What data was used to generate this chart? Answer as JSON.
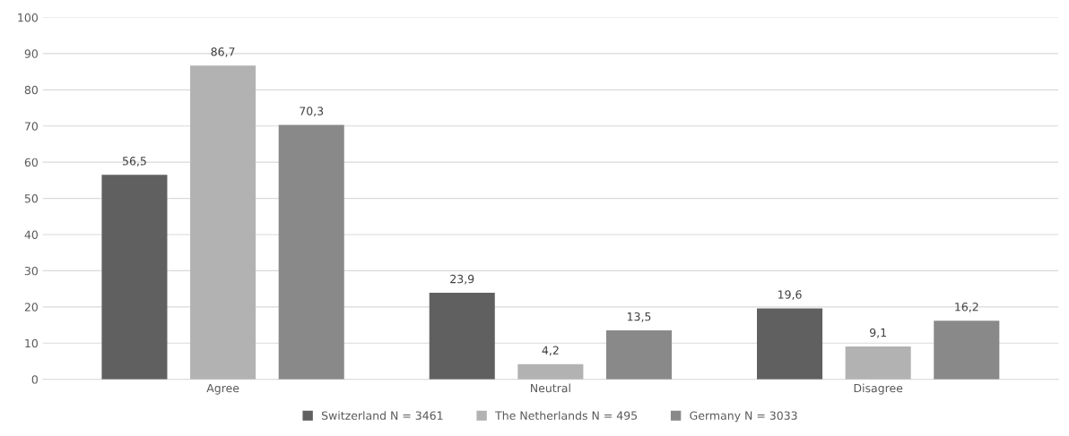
{
  "chart_data": {
    "type": "bar",
    "categories": [
      "Agree",
      "Neutral",
      "Disagree"
    ],
    "series": [
      {
        "name": "Switzerland N = 3461",
        "color": "#606060",
        "values": [
          56.5,
          23.9,
          19.6
        ],
        "value_labels": [
          "56,5",
          "23,9",
          "19,6"
        ]
      },
      {
        "name": "The Netherlands N = 495",
        "color": "#b2b2b2",
        "values": [
          86.7,
          4.2,
          9.1
        ],
        "value_labels": [
          "86,7",
          "4,2",
          "9,1"
        ]
      },
      {
        "name": "Germany N = 3033",
        "color": "#898989",
        "values": [
          70.3,
          13.5,
          16.2
        ],
        "value_labels": [
          "70,3",
          "13,5",
          "16,2"
        ]
      }
    ],
    "ylim": [
      0,
      100
    ],
    "yticks": [
      0,
      10,
      20,
      30,
      40,
      50,
      60,
      70,
      80,
      90,
      100
    ],
    "grid": "y",
    "legend": "bottom"
  }
}
